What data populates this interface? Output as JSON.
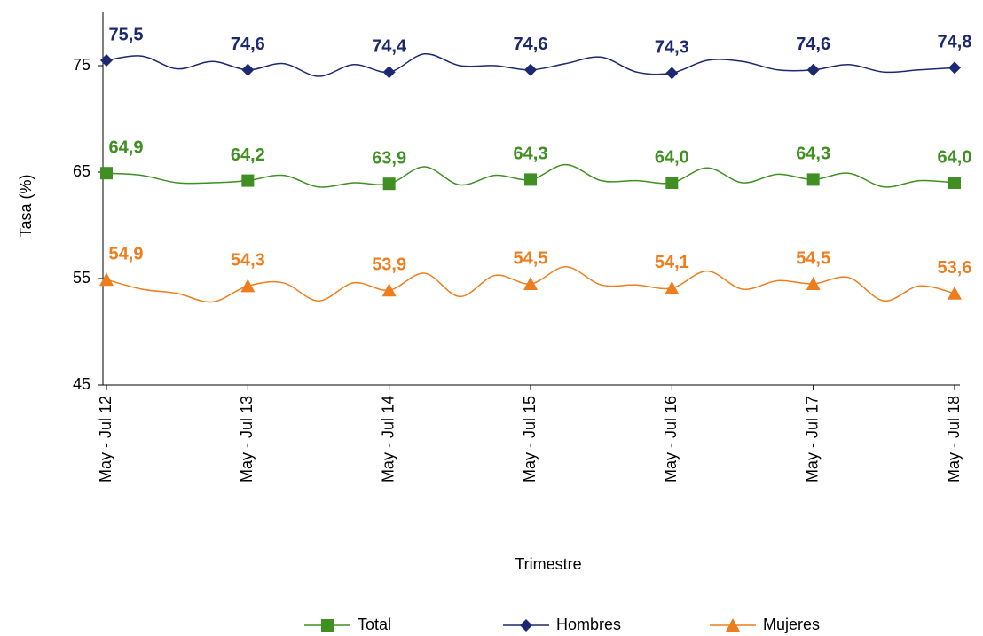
{
  "chart_data": {
    "type": "line",
    "y_label": "Tasa (%)",
    "x_label": "Trimestre",
    "categories": [
      "May - Jul 12",
      null,
      null,
      null,
      "May - Jul 13",
      null,
      null,
      null,
      "May - Jul 14",
      null,
      null,
      null,
      "May - Jul 15",
      null,
      null,
      null,
      "May - Jul 16",
      null,
      null,
      null,
      "May - Jul 17",
      null,
      null,
      null,
      "May - Jul 18"
    ],
    "ylim": [
      45,
      80
    ],
    "yticks": [
      45,
      55,
      65,
      75
    ],
    "series": [
      {
        "name": "Total",
        "color": "#3f8f22",
        "marker": "square",
        "values": [
          64.9,
          64.7,
          64.0,
          64.0,
          64.2,
          64.7,
          63.6,
          64.0,
          63.9,
          65.5,
          63.8,
          64.7,
          64.3,
          65.7,
          64.2,
          64.2,
          64.0,
          65.4,
          64.0,
          64.8,
          64.3,
          64.9,
          63.6,
          64.2,
          64.0
        ],
        "value_labels": [
          "64,9",
          null,
          null,
          null,
          "64,2",
          null,
          null,
          null,
          "63,9",
          null,
          null,
          null,
          "64,3",
          null,
          null,
          null,
          "64,0",
          null,
          null,
          null,
          "64,3",
          null,
          null,
          null,
          "64,0"
        ]
      },
      {
        "name": "Hombres",
        "color": "#1c2870",
        "marker": "diamond",
        "values": [
          75.5,
          75.9,
          74.7,
          75.4,
          74.6,
          75.2,
          74.0,
          75.1,
          74.4,
          76.1,
          75.0,
          75.0,
          74.6,
          75.2,
          75.8,
          74.4,
          74.3,
          75.5,
          75.4,
          74.6,
          74.6,
          75.1,
          74.4,
          74.6,
          74.8
        ],
        "value_labels": [
          "75,5",
          null,
          null,
          null,
          "74,6",
          null,
          null,
          null,
          "74,4",
          null,
          null,
          null,
          "74,6",
          null,
          null,
          null,
          "74,3",
          null,
          null,
          null,
          "74,6",
          null,
          null,
          null,
          "74,8"
        ]
      },
      {
        "name": "Mujeres",
        "color": "#ee7d1e",
        "marker": "triangle",
        "values": [
          54.9,
          54.0,
          53.6,
          52.8,
          54.3,
          54.6,
          52.9,
          54.6,
          53.9,
          55.5,
          53.3,
          55.3,
          54.5,
          56.1,
          54.4,
          54.4,
          54.1,
          55.7,
          54.0,
          54.8,
          54.5,
          55.1,
          52.9,
          54.3,
          53.6
        ],
        "value_labels": [
          "54,9",
          null,
          null,
          null,
          "54,3",
          null,
          null,
          null,
          "53,9",
          null,
          null,
          null,
          "54,5",
          null,
          null,
          null,
          "54,1",
          null,
          null,
          null,
          "54,5",
          null,
          null,
          null,
          "53,6"
        ]
      }
    ]
  }
}
